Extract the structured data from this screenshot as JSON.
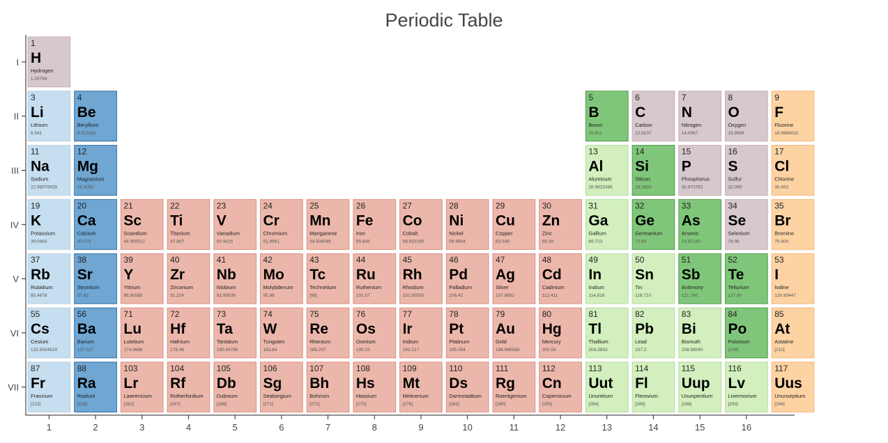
{
  "colors": {
    "alkali": "#c6dff0",
    "alkaline": "#6fa6d2",
    "transition": "#ecb7ab",
    "poor": "#d2efbd",
    "metalloid": "#80c67a",
    "nonmetal": "#d7c8cb",
    "halogen": "#fdd3a4",
    "stroke_alkali": "#b9cfe2",
    "stroke_alkaline": "#2d6fa6",
    "stroke_transition": "#dc8f80",
    "stroke_poor": "#b6dca2",
    "stroke_metalloid": "#4f9a48",
    "stroke_nonmetal": "#c4b0b4",
    "stroke_halogen": "#f3b77a"
  },
  "chart_data": {
    "type": "table",
    "title": "Periodic Table",
    "x_ticks": [
      "1",
      "2",
      "3",
      "4",
      "5",
      "6",
      "7",
      "8",
      "9",
      "10",
      "11",
      "12",
      "13",
      "14",
      "15",
      "16"
    ],
    "y_ticks": [
      "I",
      "II",
      "III",
      "IV",
      "V",
      "VI",
      "VII"
    ],
    "elements": [
      {
        "n": "1",
        "s": "H",
        "name": "Hydrogen",
        "m": "1.00794",
        "row": 1,
        "col": 1,
        "c": "nonmetal"
      },
      {
        "n": "3",
        "s": "Li",
        "name": "Lithium",
        "m": "6.941",
        "row": 2,
        "col": 1,
        "c": "alkali"
      },
      {
        "n": "4",
        "s": "Be",
        "name": "Beryllium",
        "m": "9.012182",
        "row": 2,
        "col": 2,
        "c": "alkaline"
      },
      {
        "n": "5",
        "s": "B",
        "name": "Boron",
        "m": "10.811",
        "row": 2,
        "col": 13,
        "c": "metalloid"
      },
      {
        "n": "6",
        "s": "C",
        "name": "Carbon",
        "m": "12.0107",
        "row": 2,
        "col": 14,
        "c": "nonmetal"
      },
      {
        "n": "7",
        "s": "N",
        "name": "Nitrogen",
        "m": "14.0067",
        "row": 2,
        "col": 15,
        "c": "nonmetal"
      },
      {
        "n": "8",
        "s": "O",
        "name": "Oxygen",
        "m": "15.9994",
        "row": 2,
        "col": 16,
        "c": "nonmetal"
      },
      {
        "n": "9",
        "s": "F",
        "name": "Fluorine",
        "m": "18.9984032",
        "row": 2,
        "col": 17,
        "c": "halogen"
      },
      {
        "n": "11",
        "s": "Na",
        "name": "Sodium",
        "m": "22.98976928",
        "row": 3,
        "col": 1,
        "c": "alkali"
      },
      {
        "n": "12",
        "s": "Mg",
        "name": "Magnesium",
        "m": "24.3050",
        "row": 3,
        "col": 2,
        "c": "alkaline"
      },
      {
        "n": "13",
        "s": "Al",
        "name": "Aluminum",
        "m": "26.9815386",
        "row": 3,
        "col": 13,
        "c": "poor"
      },
      {
        "n": "14",
        "s": "Si",
        "name": "Silicon",
        "m": "28.0855",
        "row": 3,
        "col": 14,
        "c": "metalloid"
      },
      {
        "n": "15",
        "s": "P",
        "name": "Phosphorus",
        "m": "30.973762",
        "row": 3,
        "col": 15,
        "c": "nonmetal"
      },
      {
        "n": "16",
        "s": "S",
        "name": "Sulfur",
        "m": "32.065",
        "row": 3,
        "col": 16,
        "c": "nonmetal"
      },
      {
        "n": "17",
        "s": "Cl",
        "name": "Chlorine",
        "m": "35.453",
        "row": 3,
        "col": 17,
        "c": "halogen"
      },
      {
        "n": "19",
        "s": "K",
        "name": "Potassium",
        "m": "39.0983",
        "row": 4,
        "col": 1,
        "c": "alkali"
      },
      {
        "n": "20",
        "s": "Ca",
        "name": "Calcium",
        "m": "40.078",
        "row": 4,
        "col": 2,
        "c": "alkaline"
      },
      {
        "n": "21",
        "s": "Sc",
        "name": "Scandium",
        "m": "44.955912",
        "row": 4,
        "col": 3,
        "c": "transition"
      },
      {
        "n": "22",
        "s": "Ti",
        "name": "Titanium",
        "m": "47.867",
        "row": 4,
        "col": 4,
        "c": "transition"
      },
      {
        "n": "23",
        "s": "V",
        "name": "Vanadium",
        "m": "50.9415",
        "row": 4,
        "col": 5,
        "c": "transition"
      },
      {
        "n": "24",
        "s": "Cr",
        "name": "Chromium",
        "m": "51.9961",
        "row": 4,
        "col": 6,
        "c": "transition"
      },
      {
        "n": "25",
        "s": "Mn",
        "name": "Manganese",
        "m": "54.938045",
        "row": 4,
        "col": 7,
        "c": "transition"
      },
      {
        "n": "26",
        "s": "Fe",
        "name": "Iron",
        "m": "55.845",
        "row": 4,
        "col": 8,
        "c": "transition"
      },
      {
        "n": "27",
        "s": "Co",
        "name": "Cobalt",
        "m": "58.933195",
        "row": 4,
        "col": 9,
        "c": "transition"
      },
      {
        "n": "28",
        "s": "Ni",
        "name": "Nickel",
        "m": "58.6934",
        "row": 4,
        "col": 10,
        "c": "transition"
      },
      {
        "n": "29",
        "s": "Cu",
        "name": "Copper",
        "m": "63.546",
        "row": 4,
        "col": 11,
        "c": "transition"
      },
      {
        "n": "30",
        "s": "Zn",
        "name": "Zinc",
        "m": "65.38",
        "row": 4,
        "col": 12,
        "c": "transition"
      },
      {
        "n": "31",
        "s": "Ga",
        "name": "Gallium",
        "m": "69.723",
        "row": 4,
        "col": 13,
        "c": "poor"
      },
      {
        "n": "32",
        "s": "Ge",
        "name": "Germanium",
        "m": "72.64",
        "row": 4,
        "col": 14,
        "c": "metalloid"
      },
      {
        "n": "33",
        "s": "As",
        "name": "Arsenic",
        "m": "74.92160",
        "row": 4,
        "col": 15,
        "c": "metalloid"
      },
      {
        "n": "34",
        "s": "Se",
        "name": "Selenium",
        "m": "78.96",
        "row": 4,
        "col": 16,
        "c": "nonmetal"
      },
      {
        "n": "35",
        "s": "Br",
        "name": "Bromine",
        "m": "79.904",
        "row": 4,
        "col": 17,
        "c": "halogen"
      },
      {
        "n": "37",
        "s": "Rb",
        "name": "Rubidium",
        "m": "85.4678",
        "row": 5,
        "col": 1,
        "c": "alkali"
      },
      {
        "n": "38",
        "s": "Sr",
        "name": "Strontium",
        "m": "87.62",
        "row": 5,
        "col": 2,
        "c": "alkaline"
      },
      {
        "n": "39",
        "s": "Y",
        "name": "Yttrium",
        "m": "88.90585",
        "row": 5,
        "col": 3,
        "c": "transition"
      },
      {
        "n": "40",
        "s": "Zr",
        "name": "Zirconium",
        "m": "91.224",
        "row": 5,
        "col": 4,
        "c": "transition"
      },
      {
        "n": "41",
        "s": "Nb",
        "name": "Niobium",
        "m": "92.90638",
        "row": 5,
        "col": 5,
        "c": "transition"
      },
      {
        "n": "42",
        "s": "Mo",
        "name": "Molybdenum",
        "m": "95.96",
        "row": 5,
        "col": 6,
        "c": "transition"
      },
      {
        "n": "43",
        "s": "Tc",
        "name": "Technetium",
        "m": "[98]",
        "row": 5,
        "col": 7,
        "c": "transition"
      },
      {
        "n": "44",
        "s": "Ru",
        "name": "Ruthenium",
        "m": "101.07",
        "row": 5,
        "col": 8,
        "c": "transition"
      },
      {
        "n": "45",
        "s": "Rh",
        "name": "Rhodium",
        "m": "102.90550",
        "row": 5,
        "col": 9,
        "c": "transition"
      },
      {
        "n": "46",
        "s": "Pd",
        "name": "Palladium",
        "m": "106.42",
        "row": 5,
        "col": 10,
        "c": "transition"
      },
      {
        "n": "47",
        "s": "Ag",
        "name": "Silver",
        "m": "107.8682",
        "row": 5,
        "col": 11,
        "c": "transition"
      },
      {
        "n": "48",
        "s": "Cd",
        "name": "Cadmium",
        "m": "112.411",
        "row": 5,
        "col": 12,
        "c": "transition"
      },
      {
        "n": "49",
        "s": "In",
        "name": "Indium",
        "m": "114.818",
        "row": 5,
        "col": 13,
        "c": "poor"
      },
      {
        "n": "50",
        "s": "Sn",
        "name": "Tin",
        "m": "118.710",
        "row": 5,
        "col": 14,
        "c": "poor"
      },
      {
        "n": "51",
        "s": "Sb",
        "name": "Antimony",
        "m": "121.760",
        "row": 5,
        "col": 15,
        "c": "metalloid"
      },
      {
        "n": "52",
        "s": "Te",
        "name": "Tellurium",
        "m": "127.60",
        "row": 5,
        "col": 16,
        "c": "metalloid"
      },
      {
        "n": "53",
        "s": "I",
        "name": "Iodine",
        "m": "126.90447",
        "row": 5,
        "col": 17,
        "c": "halogen"
      },
      {
        "n": "55",
        "s": "Cs",
        "name": "Cesium",
        "m": "132.9054519",
        "row": 6,
        "col": 1,
        "c": "alkali"
      },
      {
        "n": "56",
        "s": "Ba",
        "name": "Barium",
        "m": "137.327",
        "row": 6,
        "col": 2,
        "c": "alkaline"
      },
      {
        "n": "71",
        "s": "Lu",
        "name": "Lutetium",
        "m": "174.9668",
        "row": 6,
        "col": 3,
        "c": "transition"
      },
      {
        "n": "72",
        "s": "Hf",
        "name": "Hafnium",
        "m": "178.49",
        "row": 6,
        "col": 4,
        "c": "transition"
      },
      {
        "n": "73",
        "s": "Ta",
        "name": "Tantalum",
        "m": "180.94788",
        "row": 6,
        "col": 5,
        "c": "transition"
      },
      {
        "n": "74",
        "s": "W",
        "name": "Tungsten",
        "m": "183.84",
        "row": 6,
        "col": 6,
        "c": "transition"
      },
      {
        "n": "75",
        "s": "Re",
        "name": "Rhenium",
        "m": "186.207",
        "row": 6,
        "col": 7,
        "c": "transition"
      },
      {
        "n": "76",
        "s": "Os",
        "name": "Osmium",
        "m": "190.23",
        "row": 6,
        "col": 8,
        "c": "transition"
      },
      {
        "n": "77",
        "s": "Ir",
        "name": "Iridium",
        "m": "192.217",
        "row": 6,
        "col": 9,
        "c": "transition"
      },
      {
        "n": "78",
        "s": "Pt",
        "name": "Platinum",
        "m": "195.084",
        "row": 6,
        "col": 10,
        "c": "transition"
      },
      {
        "n": "79",
        "s": "Au",
        "name": "Gold",
        "m": "196.966569",
        "row": 6,
        "col": 11,
        "c": "transition"
      },
      {
        "n": "80",
        "s": "Hg",
        "name": "Mercury",
        "m": "200.59",
        "row": 6,
        "col": 12,
        "c": "transition"
      },
      {
        "n": "81",
        "s": "Tl",
        "name": "Thallium",
        "m": "204.3833",
        "row": 6,
        "col": 13,
        "c": "poor"
      },
      {
        "n": "82",
        "s": "Pb",
        "name": "Lead",
        "m": "207.2",
        "row": 6,
        "col": 14,
        "c": "poor"
      },
      {
        "n": "83",
        "s": "Bi",
        "name": "Bismuth",
        "m": "208.98040",
        "row": 6,
        "col": 15,
        "c": "poor"
      },
      {
        "n": "84",
        "s": "Po",
        "name": "Polonium",
        "m": "[209]",
        "row": 6,
        "col": 16,
        "c": "metalloid"
      },
      {
        "n": "85",
        "s": "At",
        "name": "Astatine",
        "m": "[210]",
        "row": 6,
        "col": 17,
        "c": "halogen"
      },
      {
        "n": "87",
        "s": "Fr",
        "name": "Francium",
        "m": "[223]",
        "row": 7,
        "col": 1,
        "c": "alkali"
      },
      {
        "n": "88",
        "s": "Ra",
        "name": "Radium",
        "m": "[226]",
        "row": 7,
        "col": 2,
        "c": "alkaline"
      },
      {
        "n": "103",
        "s": "Lr",
        "name": "Lawrencium",
        "m": "[262]",
        "row": 7,
        "col": 3,
        "c": "transition"
      },
      {
        "n": "104",
        "s": "Rf",
        "name": "Rutherfordium",
        "m": "[267]",
        "row": 7,
        "col": 4,
        "c": "transition"
      },
      {
        "n": "105",
        "s": "Db",
        "name": "Dubnium",
        "m": "[268]",
        "row": 7,
        "col": 5,
        "c": "transition"
      },
      {
        "n": "106",
        "s": "Sg",
        "name": "Seaborgium",
        "m": "[271]",
        "row": 7,
        "col": 6,
        "c": "transition"
      },
      {
        "n": "107",
        "s": "Bh",
        "name": "Bohrium",
        "m": "[272]",
        "row": 7,
        "col": 7,
        "c": "transition"
      },
      {
        "n": "108",
        "s": "Hs",
        "name": "Hassium",
        "m": "[270]",
        "row": 7,
        "col": 8,
        "c": "transition"
      },
      {
        "n": "109",
        "s": "Mt",
        "name": "Meitnerium",
        "m": "[276]",
        "row": 7,
        "col": 9,
        "c": "transition"
      },
      {
        "n": "110",
        "s": "Ds",
        "name": "Darmstadtium",
        "m": "[281]",
        "row": 7,
        "col": 10,
        "c": "transition"
      },
      {
        "n": "111",
        "s": "Rg",
        "name": "Roentgenium",
        "m": "[280]",
        "row": 7,
        "col": 11,
        "c": "transition"
      },
      {
        "n": "112",
        "s": "Cn",
        "name": "Copernicium",
        "m": "[285]",
        "row": 7,
        "col": 12,
        "c": "transition"
      },
      {
        "n": "113",
        "s": "Uut",
        "name": "Ununtrium",
        "m": "[284]",
        "row": 7,
        "col": 13,
        "c": "poor"
      },
      {
        "n": "114",
        "s": "Fl",
        "name": "Flerovium",
        "m": "[289]",
        "row": 7,
        "col": 14,
        "c": "poor"
      },
      {
        "n": "115",
        "s": "Uup",
        "name": "Ununpentium",
        "m": "[288]",
        "row": 7,
        "col": 15,
        "c": "poor"
      },
      {
        "n": "116",
        "s": "Lv",
        "name": "Livermorium",
        "m": "[293]",
        "row": 7,
        "col": 16,
        "c": "poor"
      },
      {
        "n": "117",
        "s": "Uus",
        "name": "Ununseptium",
        "m": "[294]",
        "row": 7,
        "col": 17,
        "c": "halogen"
      }
    ]
  }
}
